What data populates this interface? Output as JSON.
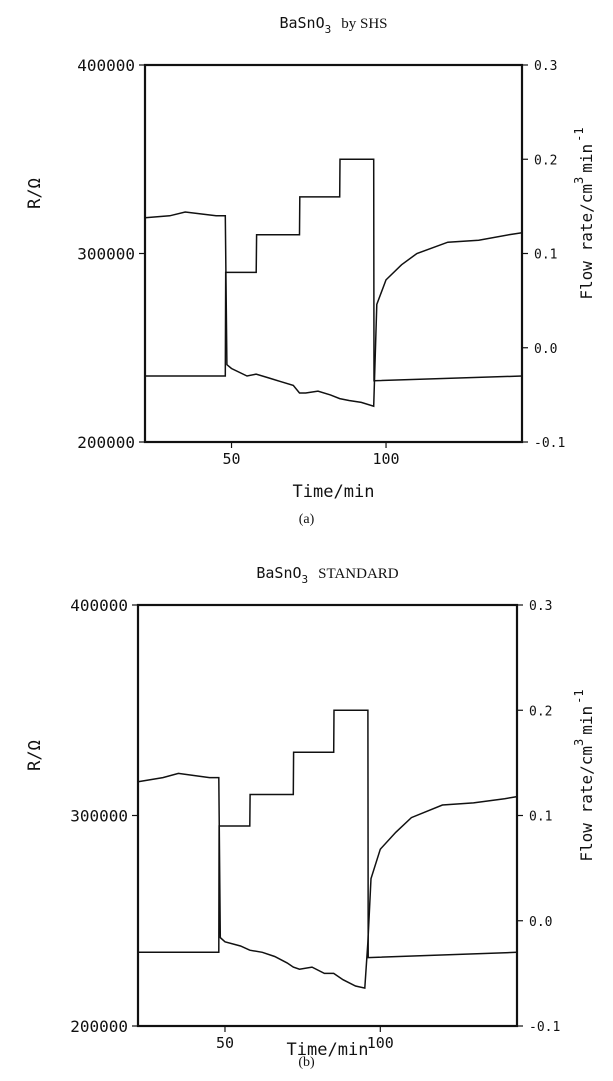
{
  "panels": [
    {
      "caption": "(a)"
    },
    {
      "caption": "(b)"
    }
  ],
  "chart_data": [
    {
      "type": "line",
      "title_main": "BaSnO",
      "title_sub": "3",
      "title_rest": "by SHS",
      "xlabel": "Time/min",
      "ylabel_left": "R/Ω",
      "ylabel_right_main": "Flow rate/cm",
      "ylabel_right_sup1": "3",
      "ylabel_right_tail": "min",
      "ylabel_right_sup2": "-1",
      "xlim": [
        22,
        144
      ],
      "xticks": [
        50,
        100
      ],
      "ylim_left": [
        200000,
        400000
      ],
      "yticks_left": [
        200000,
        300000,
        400000
      ],
      "ylim_right": [
        -0.1,
        0.3
      ],
      "yticks_right": [
        "-0.1",
        "0.0",
        "0.1",
        "0.2",
        "0.3"
      ],
      "series": [
        {
          "axis": "left",
          "x": [
            22,
            30,
            35,
            40,
            45,
            48,
            48.5,
            50,
            55,
            58,
            62,
            66,
            70,
            72,
            74,
            78,
            82,
            85,
            88,
            92,
            96,
            97,
            100,
            105,
            110,
            120,
            130,
            140,
            144
          ],
          "y": [
            319000,
            320000,
            322000,
            321000,
            320000,
            320000,
            241000,
            239000,
            235000,
            236000,
            234000,
            232000,
            230000,
            226000,
            226000,
            227000,
            225000,
            223000,
            222000,
            221000,
            219000,
            273000,
            286000,
            294000,
            300000,
            306000,
            307000,
            310000,
            311000
          ]
        },
        {
          "axis": "right",
          "x": [
            22,
            48,
            48.1,
            58,
            58.1,
            72,
            72.1,
            85,
            85.1,
            96,
            96.1,
            144
          ],
          "y": [
            -0.03,
            -0.03,
            0.08,
            0.08,
            0.12,
            0.12,
            0.16,
            0.16,
            0.2,
            0.2,
            -0.035,
            -0.03
          ]
        }
      ]
    },
    {
      "type": "line",
      "title_main": "BaSnO",
      "title_sub": "3",
      "title_rest": "STANDARD",
      "xlabel": "Time/min",
      "ylabel_left": "R/Ω",
      "ylabel_right_main": "Flow rate/cm",
      "ylabel_right_sup1": "3",
      "ylabel_right_tail": "min",
      "ylabel_right_sup2": "-1",
      "xlim": [
        22,
        144
      ],
      "xticks": [
        50,
        100
      ],
      "ylim_left": [
        200000,
        400000
      ],
      "yticks_left": [
        200000,
        300000,
        400000
      ],
      "ylim_right": [
        -0.1,
        0.3
      ],
      "yticks_right": [
        "-0.1",
        "0.0",
        "0.1",
        "0.2",
        "0.3"
      ],
      "series": [
        {
          "axis": "left",
          "x": [
            22,
            30,
            35,
            40,
            45,
            48,
            48.5,
            50,
            55,
            58,
            62,
            66,
            70,
            72,
            74,
            78,
            82,
            85,
            88,
            92,
            95,
            96,
            97,
            100,
            105,
            110,
            120,
            130,
            140,
            144
          ],
          "y": [
            316000,
            318000,
            320000,
            319000,
            318000,
            318000,
            242000,
            240000,
            238000,
            236000,
            235000,
            233000,
            230000,
            228000,
            227000,
            228000,
            225000,
            225000,
            222000,
            219000,
            218000,
            240000,
            270000,
            284000,
            292000,
            299000,
            305000,
            306000,
            308000,
            309000
          ]
        },
        {
          "axis": "right",
          "x": [
            22,
            48,
            48.1,
            58,
            58.1,
            72,
            72.1,
            85,
            85.1,
            96,
            96.1,
            144
          ],
          "y": [
            -0.03,
            -0.03,
            0.09,
            0.09,
            0.12,
            0.12,
            0.16,
            0.16,
            0.2,
            0.2,
            -0.035,
            -0.03
          ]
        }
      ]
    }
  ]
}
